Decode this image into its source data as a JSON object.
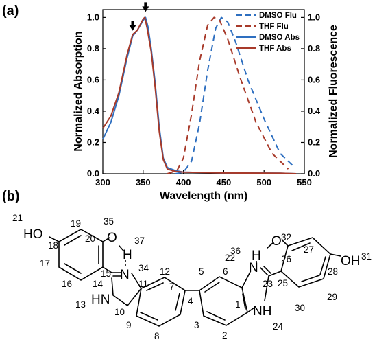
{
  "panels": {
    "a_label": "(a)",
    "b_label": "(b)"
  },
  "chart_data": {
    "type": "line",
    "xlabel": "Wavelength (nm)",
    "ylabel_left": "Normalized Absorption",
    "ylabel_right": "Normalized Fluorescence",
    "xlim": [
      300,
      550
    ],
    "ylim_left": [
      0,
      1.05
    ],
    "ylim_right": [
      0,
      1.05
    ],
    "x_ticks": [
      "300",
      "350",
      "400",
      "450",
      "500",
      "550"
    ],
    "y_ticks": [
      "0.0",
      "0.2",
      "0.4",
      "0.6",
      "0.8",
      "1.0"
    ],
    "legend_position": "top-right",
    "series": [
      {
        "name": "DMSO Flu",
        "axis": "right",
        "color": "#2e6fc0",
        "dash": true,
        "points": [
          [
            390,
            0
          ],
          [
            400,
            0.01
          ],
          [
            410,
            0.08
          ],
          [
            420,
            0.32
          ],
          [
            430,
            0.66
          ],
          [
            440,
            0.93
          ],
          [
            447,
            1.0
          ],
          [
            455,
            0.97
          ],
          [
            465,
            0.84
          ],
          [
            480,
            0.6
          ],
          [
            500,
            0.35
          ],
          [
            520,
            0.13
          ],
          [
            538,
            0.04
          ]
        ]
      },
      {
        "name": "THF Flu",
        "axis": "right",
        "color": "#a83a2a",
        "dash": true,
        "points": [
          [
            380,
            0
          ],
          [
            392,
            0.02
          ],
          [
            400,
            0.1
          ],
          [
            410,
            0.38
          ],
          [
            420,
            0.72
          ],
          [
            430,
            0.95
          ],
          [
            438,
            1.0
          ],
          [
            445,
            0.98
          ],
          [
            455,
            0.86
          ],
          [
            470,
            0.62
          ],
          [
            490,
            0.33
          ],
          [
            510,
            0.13
          ],
          [
            530,
            0.03
          ]
        ]
      },
      {
        "name": "DMSO Abs",
        "axis": "left",
        "color": "#2e6fc0",
        "dash": false,
        "points": [
          [
            300,
            0.22
          ],
          [
            310,
            0.33
          ],
          [
            320,
            0.5
          ],
          [
            330,
            0.74
          ],
          [
            337,
            0.88
          ],
          [
            343,
            0.92
          ],
          [
            350,
            0.98
          ],
          [
            353,
            1.0
          ],
          [
            356,
            0.94
          ],
          [
            360,
            0.8
          ],
          [
            365,
            0.58
          ],
          [
            370,
            0.3
          ],
          [
            375,
            0.1
          ],
          [
            380,
            0.04
          ],
          [
            390,
            0.02
          ],
          [
            400,
            0.01
          ],
          [
            450,
            0.005
          ],
          [
            520,
            0.003
          ],
          [
            540,
            0.0
          ]
        ]
      },
      {
        "name": "THF Abs",
        "axis": "left",
        "color": "#a83a2a",
        "dash": false,
        "points": [
          [
            300,
            0.29
          ],
          [
            310,
            0.37
          ],
          [
            320,
            0.52
          ],
          [
            330,
            0.76
          ],
          [
            337,
            0.89
          ],
          [
            343,
            0.92
          ],
          [
            350,
            0.99
          ],
          [
            352,
            1.0
          ],
          [
            355,
            0.93
          ],
          [
            360,
            0.78
          ],
          [
            365,
            0.55
          ],
          [
            370,
            0.27
          ],
          [
            375,
            0.09
          ],
          [
            380,
            0.03
          ],
          [
            390,
            0.015
          ],
          [
            400,
            0.01
          ],
          [
            450,
            0.005
          ],
          [
            520,
            0.003
          ],
          [
            540,
            0.0
          ]
        ]
      }
    ],
    "markers": [
      {
        "label": "arrow",
        "x": 337
      },
      {
        "label": "arrow",
        "x": 353
      }
    ]
  },
  "structure": {
    "atoms": {
      "HO_left": "HO",
      "O_35": "O",
      "H_37": "H",
      "N_34": "N",
      "HN_13": "HN",
      "N_22": "N",
      "H_36": "H",
      "O_32": "O",
      "NH_24": "NH",
      "OH_right": "OH"
    },
    "numbers": {
      "n1": "1",
      "n2": "2",
      "n3": "3",
      "n4": "4",
      "n5": "5",
      "n6": "6",
      "n7": "7",
      "n8": "8",
      "n9": "9",
      "n10": "10",
      "n11": "11",
      "n12": "12",
      "n13": "13",
      "n14": "14",
      "n15": "15",
      "n16": "16",
      "n17": "17",
      "n18": "18",
      "n19": "19",
      "n20": "20",
      "n21": "21",
      "n22": "22",
      "n23": "23",
      "n24": "24",
      "n25": "25",
      "n26": "26",
      "n27": "27",
      "n28": "28",
      "n29": "29",
      "n30": "30",
      "n31": "31",
      "n32": "32",
      "n34": "34",
      "n35": "35",
      "n36": "36",
      "n37": "37"
    }
  }
}
